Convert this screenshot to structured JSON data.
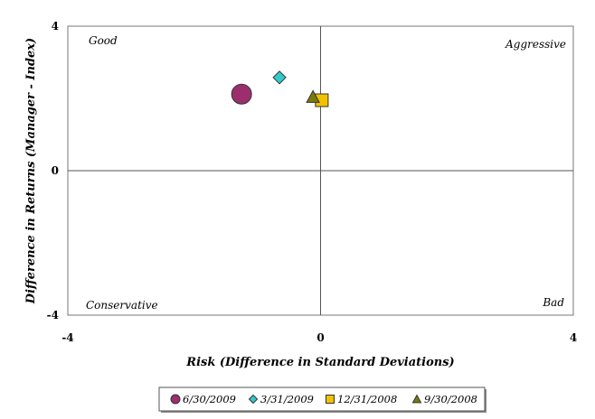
{
  "chart_data": {
    "type": "scatter",
    "xlabel": "Risk (Difference in Standard Deviations)",
    "ylabel": "Difference in Returns (Manager - Index)",
    "xlim": [
      -4,
      4
    ],
    "ylim": [
      -4,
      4
    ],
    "x_ticks": [
      "-4",
      "0",
      "4"
    ],
    "y_ticks": [
      "4",
      "0",
      "-4"
    ],
    "grid": false,
    "legend_position": "bottom",
    "quadrant_labels": {
      "top_left": "Good",
      "top_right": "Aggressive",
      "bottom_left": "Conservative",
      "bottom_right": "Bad"
    },
    "series": [
      {
        "name": "6/30/2009",
        "x": -1.25,
        "y": 2.12,
        "marker": "circle",
        "color": "#9b2f6e"
      },
      {
        "name": "3/31/2009",
        "x": -0.65,
        "y": 2.58,
        "marker": "diamond",
        "color": "#33c9cc"
      },
      {
        "name": "12/31/2008",
        "x": 0.02,
        "y": 1.95,
        "marker": "square",
        "color": "#f2c200"
      },
      {
        "name": "9/30/2008",
        "x": -0.12,
        "y": 2.04,
        "marker": "triangle",
        "color": "#7a7a0a"
      }
    ]
  }
}
